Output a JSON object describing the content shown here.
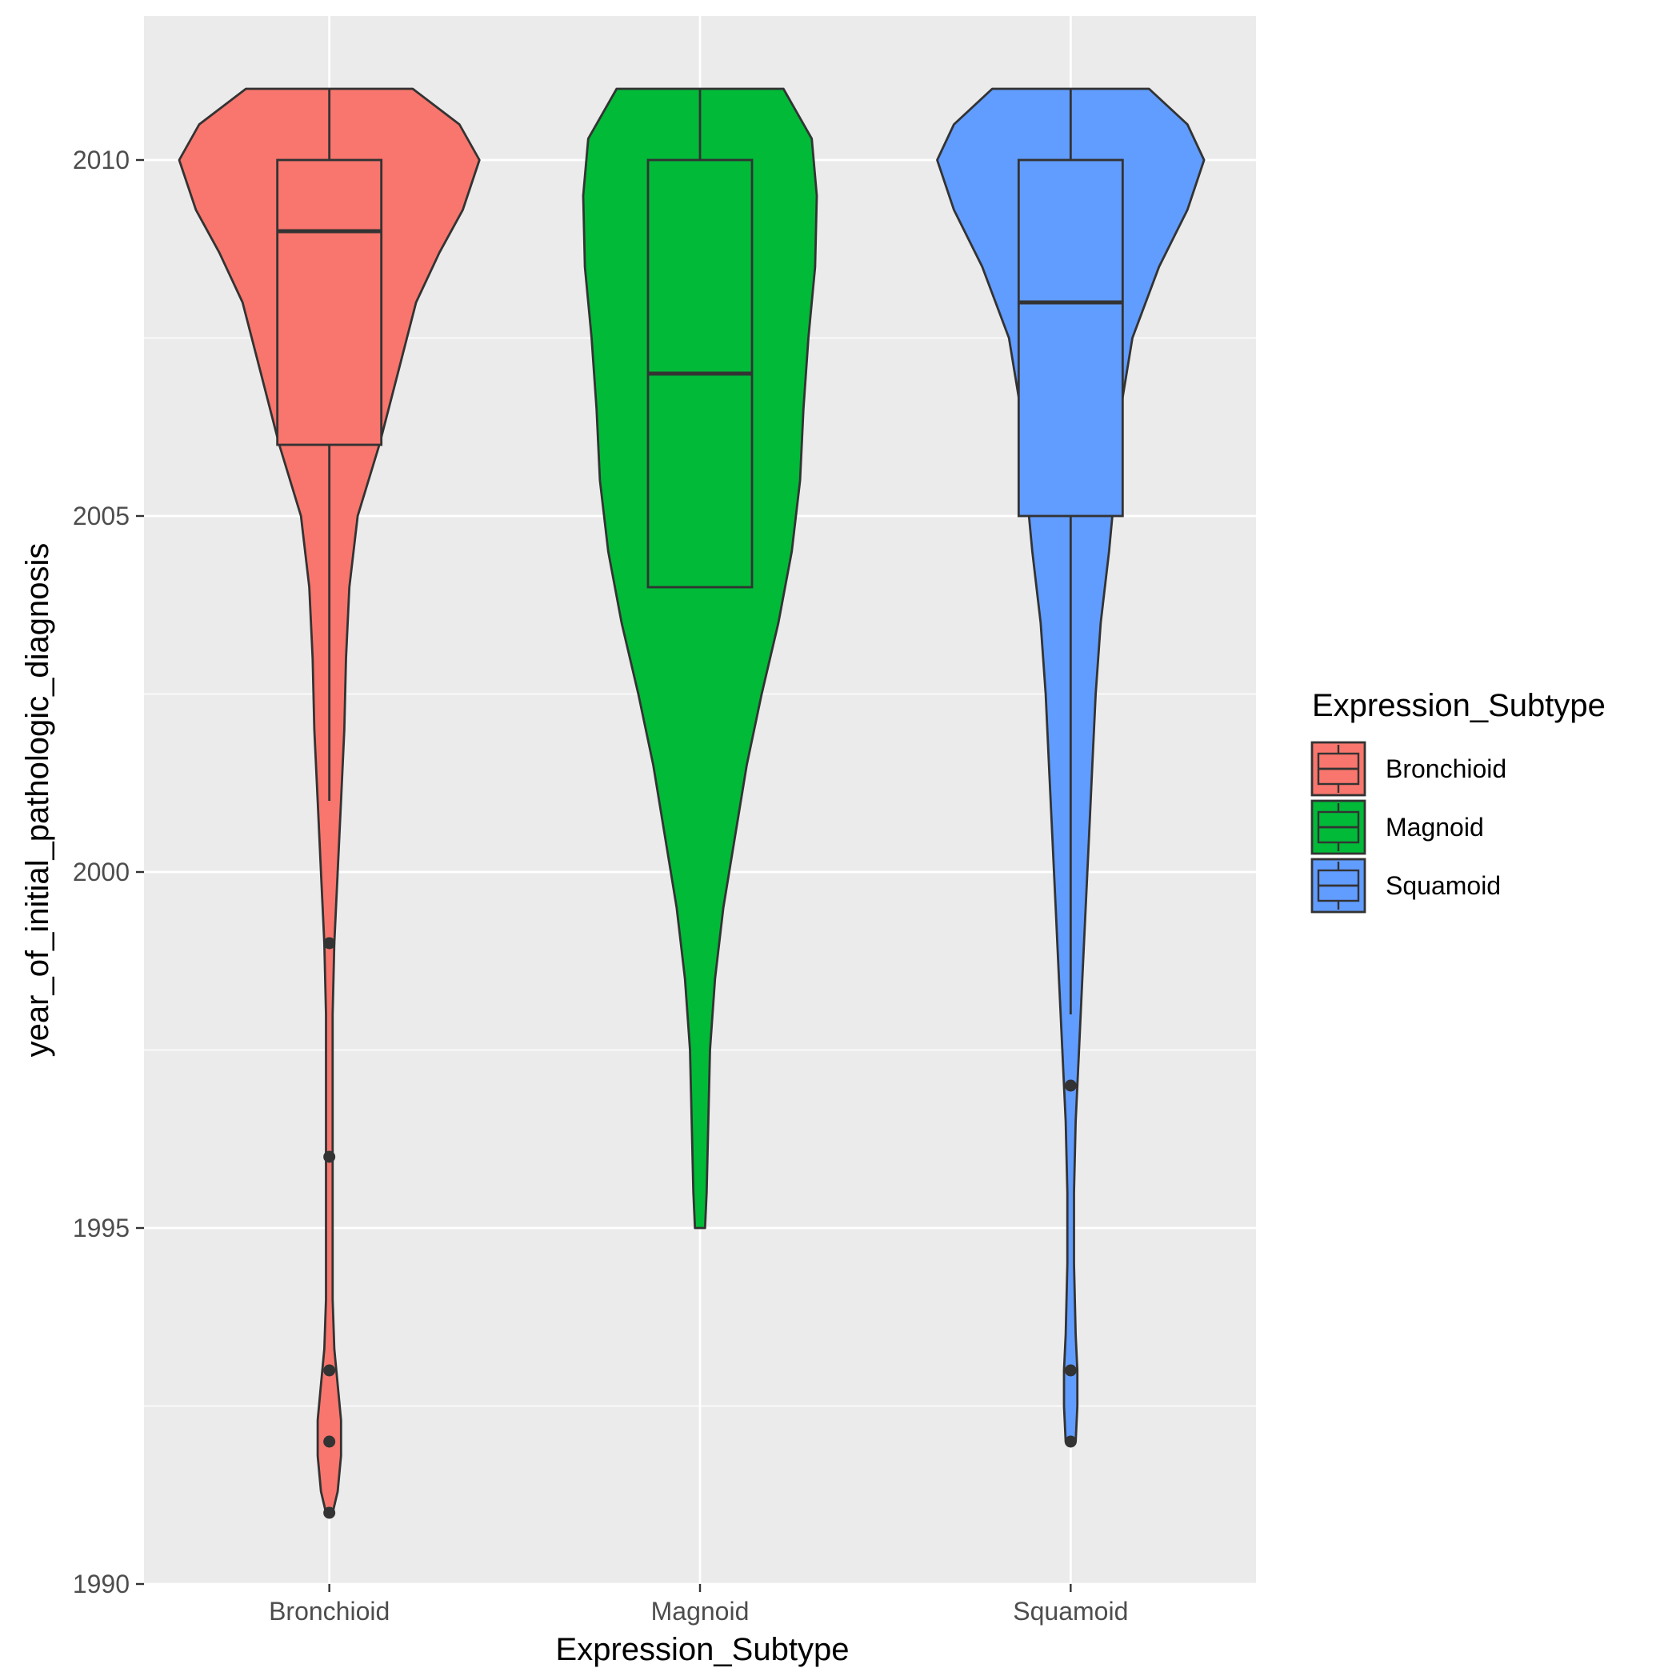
{
  "chart_data": {
    "type": "violin",
    "xlabel": "Expression_Subtype",
    "ylabel": "year_of_initial_pathologic_diagnosis",
    "ylim": [
      1990,
      2012
    ],
    "y_ticks": [
      1990,
      1995,
      2000,
      2005,
      2010
    ],
    "categories": [
      "Bronchioid",
      "Magnoid",
      "Squamoid"
    ],
    "grid": true,
    "legend": {
      "title": "Expression_Subtype",
      "position": "right",
      "entries": [
        "Bronchioid",
        "Magnoid",
        "Squamoid"
      ]
    },
    "series": [
      {
        "name": "Bronchioid",
        "color": "#F8766D",
        "box": {
          "min": 2001,
          "q1": 2006,
          "median": 2009,
          "q3": 2010,
          "max": 2011
        },
        "outliers": [
          1999,
          1996,
          1993,
          1992,
          1991
        ],
        "density": [
          [
            1991,
            0.02
          ],
          [
            1991.3,
            0.05
          ],
          [
            1991.8,
            0.07
          ],
          [
            1992.3,
            0.07
          ],
          [
            1992.8,
            0.05
          ],
          [
            1993.3,
            0.03
          ],
          [
            1994,
            0.02
          ],
          [
            1995,
            0.02
          ],
          [
            1996,
            0.02
          ],
          [
            1997,
            0.02
          ],
          [
            1998,
            0.02
          ],
          [
            1999,
            0.03
          ],
          [
            2000,
            0.05
          ],
          [
            2001,
            0.07
          ],
          [
            2002,
            0.09
          ],
          [
            2003,
            0.1
          ],
          [
            2004,
            0.12
          ],
          [
            2005,
            0.17
          ],
          [
            2006,
            0.3
          ],
          [
            2007,
            0.41
          ],
          [
            2008,
            0.52
          ],
          [
            2008.7,
            0.66
          ],
          [
            2009.3,
            0.8
          ],
          [
            2010,
            0.9
          ],
          [
            2010.5,
            0.78
          ],
          [
            2011,
            0.5
          ]
        ]
      },
      {
        "name": "Magnoid",
        "color": "#00BA38",
        "box": {
          "min": 2004,
          "q1": 2004,
          "median": 2007,
          "q3": 2010,
          "max": 2011
        },
        "outliers": [],
        "density": [
          [
            1995,
            0.03
          ],
          [
            1995.5,
            0.04
          ],
          [
            1996.5,
            0.05
          ],
          [
            1997.5,
            0.06
          ],
          [
            1998.5,
            0.09
          ],
          [
            1999.5,
            0.14
          ],
          [
            2000.5,
            0.21
          ],
          [
            2001.5,
            0.28
          ],
          [
            2002.5,
            0.37
          ],
          [
            2003.5,
            0.47
          ],
          [
            2004.5,
            0.55
          ],
          [
            2005.5,
            0.6
          ],
          [
            2006.5,
            0.62
          ],
          [
            2007.5,
            0.65
          ],
          [
            2008.5,
            0.69
          ],
          [
            2009.5,
            0.7
          ],
          [
            2010.3,
            0.67
          ],
          [
            2011,
            0.5
          ]
        ]
      },
      {
        "name": "Squamoid",
        "color": "#619CFF",
        "box": {
          "min": 1998,
          "q1": 2005,
          "median": 2008,
          "q3": 2010,
          "max": 2011
        },
        "outliers": [
          1997,
          1993,
          1992
        ],
        "density": [
          [
            1992,
            0.03
          ],
          [
            1992.5,
            0.04
          ],
          [
            1993,
            0.04
          ],
          [
            1993.5,
            0.03
          ],
          [
            1994.5,
            0.02
          ],
          [
            1995.5,
            0.02
          ],
          [
            1996.5,
            0.03
          ],
          [
            1997.5,
            0.05
          ],
          [
            1998.5,
            0.07
          ],
          [
            1999.5,
            0.09
          ],
          [
            2000.5,
            0.11
          ],
          [
            2001.5,
            0.13
          ],
          [
            2002.5,
            0.15
          ],
          [
            2003.5,
            0.18
          ],
          [
            2004.5,
            0.23
          ],
          [
            2005.5,
            0.27
          ],
          [
            2006.5,
            0.3
          ],
          [
            2007.5,
            0.37
          ],
          [
            2008.5,
            0.53
          ],
          [
            2009.3,
            0.7
          ],
          [
            2010,
            0.8
          ],
          [
            2010.5,
            0.7
          ],
          [
            2011,
            0.47
          ]
        ]
      }
    ]
  }
}
